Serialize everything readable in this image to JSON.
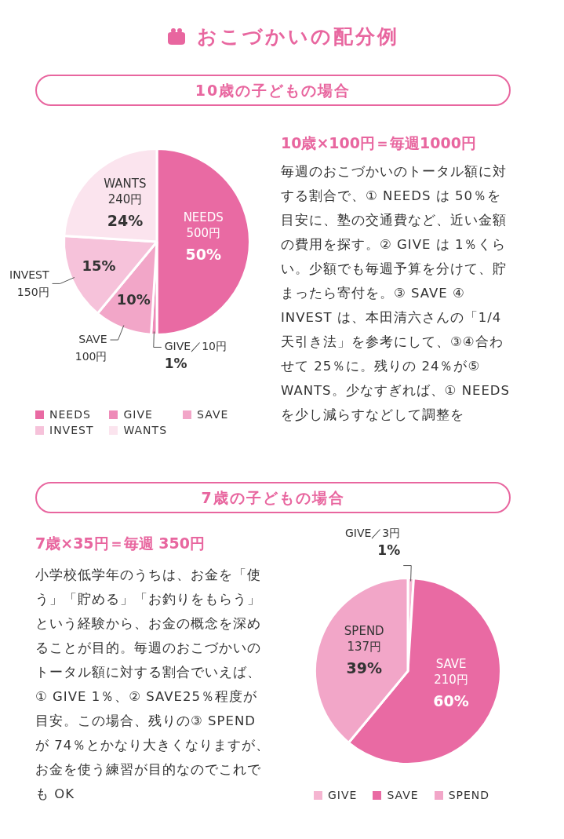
{
  "chart_data": [
    {
      "type": "other",
      "title": "おこづかいの配分例"
    },
    {
      "type": "pie",
      "title": "10歳の子どもの場合",
      "subtitle": "10歳×100円＝毎週1000円",
      "categories": [
        "NEEDS",
        "GIVE",
        "SAVE",
        "INVEST",
        "WANTS"
      ],
      "values": [
        50,
        1,
        10,
        15,
        24
      ],
      "colors": [
        "#e96aa3",
        "#ee8bb8",
        "#f2a6c8",
        "#f6c2da",
        "#fbe4ee"
      ],
      "value_labels": [
        "50%",
        "1%",
        "10%",
        "15%",
        "24%"
      ],
      "legend": "bottom",
      "annotations": [
        {
          "text": "500円",
          "x": "NEEDS"
        },
        {
          "text": "GIVE／10円",
          "x": "GIVE"
        },
        {
          "text": "100円",
          "x": "SAVE"
        },
        {
          "text": "150円",
          "x": "INVEST"
        },
        {
          "text": "240円",
          "x": "WANTS"
        },
        "毎週のおこづかいのトータル額に対する割合で、① NEEDS は 50％を目安に、塾の交通費など、近い金額の費用を探す。② GIVE は 1％くらい。少額でも毎週予算を分けて、貯まったら寄付を。③ SAVE ④ INVEST は、本田清六さんの「1/4 天引き法」を参考にして、③④合わせて 25％に。残りの 24％が⑤ WANTS。少なすぎれば、① NEEDS を少し減らすなどして調整を"
      ]
    },
    {
      "type": "pie",
      "title": "7歳の子どもの場合",
      "subtitle": "7歳×35円＝毎週 350円",
      "categories": [
        "GIVE",
        "SAVE",
        "SPEND"
      ],
      "values": [
        1,
        60,
        39
      ],
      "colors": [
        "#f5b5d1",
        "#e96aa3",
        "#f2a6c8"
      ],
      "value_labels": [
        "1%",
        "60%",
        "39%"
      ],
      "legend": "bottom",
      "annotations": [
        {
          "text": "GIVE／3円",
          "x": "GIVE"
        },
        {
          "text": "210円",
          "x": "SAVE"
        },
        {
          "text": "137円",
          "x": "SPEND"
        },
        "小学校低学年のうちは、お金を「使う」「貯める」「お釣りをもらう」という経験から、お金の概念を深めることが目的。毎週のおこづかいのトータル額に対する割合でいえば、① GIVE 1％、② SAVE25％程度が目安。この場合、残りの③ SPEND が 74％とかなり大きくなりますが、お金を使う練習が目的なのでこれでも OK"
      ]
    }
  ]
}
